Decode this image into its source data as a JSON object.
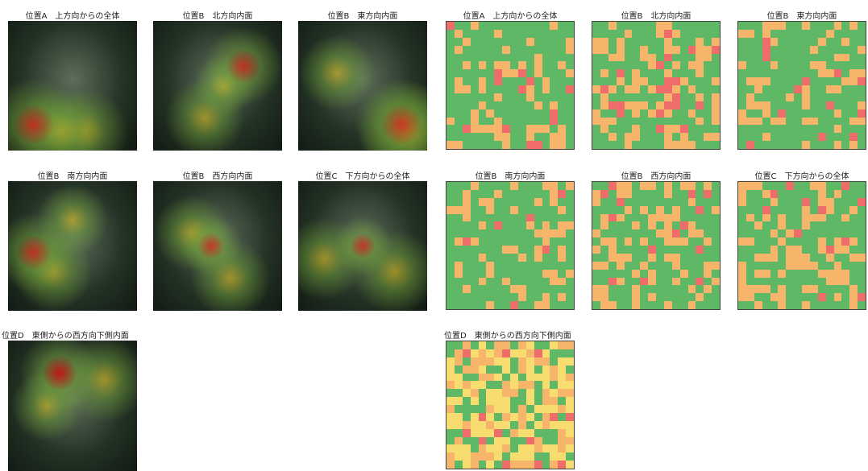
{
  "figure": {
    "photo_titles": [
      "位置A　上方向からの全体",
      "位置B　北方向内面",
      "位置B　東方向内面",
      "位置B　南方向内面",
      "位置B　西方向内面",
      "位置C　下方向からの全体",
      "位置D　東側からの西方向下側内面"
    ],
    "grid_titles": [
      "位置A　上方向からの全体",
      "位置B　北方向内面",
      "位置B　東方向内面",
      "位置B　南方向内面",
      "位置B　西方向内面",
      "位置C　下方向からの全体",
      "位置D　東側からの西方向下側内面"
    ]
  }
}
